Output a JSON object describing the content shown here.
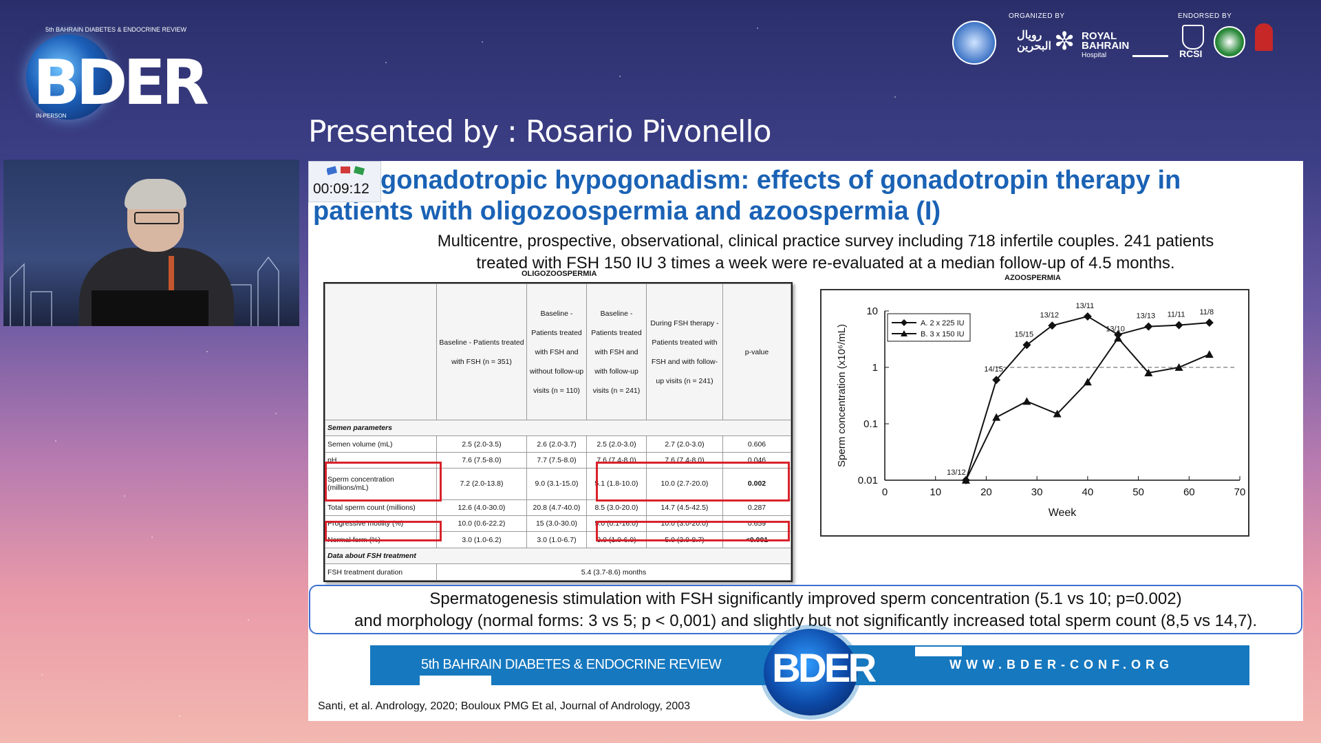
{
  "header": {
    "conference_tag": "5th BAHRAIN DIABETES & ENDOCRINE REVIEW",
    "logo_word": "BDER",
    "mode": "IN-PERSON",
    "organized_by": "ORGANIZED BY",
    "endorsed_by": "ENDORSED BY",
    "hospital_line1": "ROYAL",
    "hospital_line2": "BAHRAIN",
    "hospital_line3": "Hospital",
    "arabic_org": "رويال البحرين",
    "rcsi": "RCSI"
  },
  "presenter": "Presented by : Rosario Pivonello",
  "timer": "00:09:12",
  "slide": {
    "title_line1": "gonadotropic hypogonadism: effects of gonadotropin therapy in",
    "title_line2": "patients with oligozoospermia and azoospermia (I)",
    "subtitle_line1": "Multicentre, prospective, observational, clinical practice survey including 718 infertile couples. 241 patients",
    "subtitle_line2": "treated with FSH 150 IU 3 times a week were re-evaluated at a median follow-up of 4.5 months.",
    "table_caption": "OLIGOZOOSPERMIA",
    "table": {
      "headers": [
        "",
        "Baseline - Patients treated with FSH (n = 351)",
        "Baseline - Patients treated with FSH and without follow-up visits (n = 110)",
        "Baseline - Patients treated with FSH and with follow-up visits (n = 241)",
        "During FSH therapy - Patients treated with FSH and with follow-up visits (n = 241)",
        "p-value"
      ],
      "section1": "Semen parameters",
      "rows": [
        [
          "Semen volume (mL)",
          "2.5 (2.0-3.5)",
          "2.6 (2.0-3.7)",
          "2.5 (2.0-3.0)",
          "2.7 (2.0-3.0)",
          "0.606"
        ],
        [
          "pH",
          "7.6 (7.5-8.0)",
          "7.7 (7.5-8.0)",
          "7.6 (7.4-8.0)",
          "7.6 (7.4-8.0)",
          "0.046"
        ],
        [
          "Sperm concentration (millions/mL)",
          "7.2 (2.0-13.8)",
          "9.0 (3.1-15.0)",
          "5.1 (1.8-10.0)",
          "10.0 (2.7-20.0)",
          "0.002"
        ],
        [
          "Total sperm count (millions)",
          "12.6 (4.0-30.0)",
          "20.8 (4.7-40.0)",
          "8.5 (3.0-20.0)",
          "14.7 (4.5-42.5)",
          "0.287"
        ],
        [
          "Progressive motility (%)",
          "10.0 (0.6-22.2)",
          "15 (3.0-30.0)",
          "5.0 (0.1-16.0)",
          "10.0 (3.0-20.0)",
          "0.659"
        ],
        [
          "Normal form (%)",
          "3.0 (1.0-6.2)",
          "3.0 (1.0-6.7)",
          "3.0 (1.0-6.0)",
          "5.0 (3.0-8.7)",
          "<0.001"
        ]
      ],
      "section2": "Data about FSH treatment",
      "duration_label": "FSH treatment duration",
      "duration_value": "5.4 (3.7-8.6) months"
    },
    "chart_caption": "AZOOSPERMIA",
    "conclusion_line1": "Spermatogenesis stimulation with FSH significantly improved sperm concentration (5.1 vs 10; p=0.002)",
    "conclusion_line2": "and morphology (normal forms: 3 vs 5; p < 0,001) and slightly but not significantly increased total sperm count (8,5 vs 14,7).",
    "footer_left": "5th BAHRAIN DIABETES & ENDOCRINE REVIEW",
    "footer_right": "WWW.BDER-CONF.ORG",
    "footer_logo": "BDER",
    "references": "Santi, et al. Andrology, 2020; Bouloux PMG  Et al, Journal of Andrology, 2003"
  },
  "chart_data": {
    "type": "line",
    "title": "",
    "xlabel": "Week",
    "ylabel": "Sperm concentration (x10⁶/mL)",
    "xlim": [
      0,
      70
    ],
    "xticks": [
      0,
      10,
      20,
      30,
      40,
      50,
      60,
      70
    ],
    "ylim": [
      0.01,
      10
    ],
    "yscale": "log",
    "yticks": [
      "10",
      "1",
      "0.1",
      "0.01"
    ],
    "reference_line_y": 1,
    "legend_position": "top-left",
    "series": [
      {
        "name": "A. 2 x 225 IU",
        "marker": "diamond",
        "x": [
          16,
          22,
          28,
          33,
          40,
          46,
          52,
          58,
          64
        ],
        "y": [
          0.01,
          0.6,
          2.5,
          5.5,
          8.0,
          3.8,
          5.3,
          5.6,
          6.2
        ],
        "labels": [
          "13/12",
          "14/15",
          "15/15",
          "13/12",
          "13/11",
          "",
          "13/13",
          "11/11",
          "11/8"
        ]
      },
      {
        "name": "B. 3 x 150 IU",
        "marker": "triangle",
        "x": [
          16,
          22,
          28,
          34,
          40,
          46,
          52,
          58,
          64
        ],
        "y": [
          0.01,
          0.13,
          0.25,
          0.15,
          0.55,
          3.3,
          0.8,
          1.0,
          1.7
        ],
        "labels": [
          "",
          "",
          "",
          "",
          "",
          "13/10",
          "",
          "",
          ""
        ]
      }
    ]
  }
}
